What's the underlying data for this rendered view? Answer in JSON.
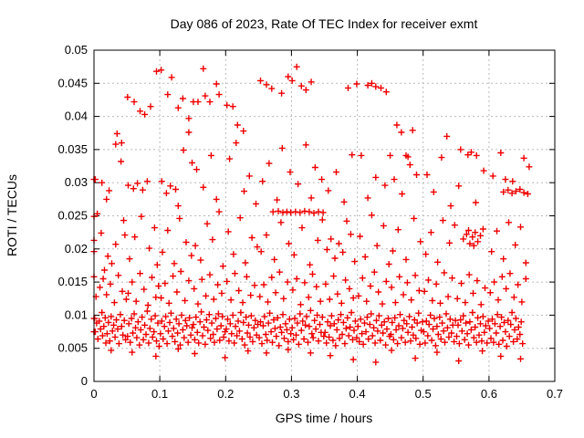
{
  "chart_data": {
    "type": "scatter",
    "title": "Day 086 of 2023, Rate Of TEC Index for receiver exmt",
    "xlabel": "GPS time / hours",
    "ylabel": "ROTI / TECUs",
    "xlim": [
      0,
      0.7
    ],
    "ylim": [
      0,
      0.05
    ],
    "x_ticks": [
      0,
      0.1,
      0.2,
      0.3,
      0.4,
      0.5,
      0.6,
      0.7
    ],
    "x_tick_labels": [
      "0",
      "0.1",
      "0.2",
      "0.3",
      "0.4",
      "0.5",
      "0.6",
      "0.7"
    ],
    "y_ticks": [
      0,
      0.005,
      0.01,
      0.015,
      0.02,
      0.025,
      0.03,
      0.035,
      0.04,
      0.045,
      0.05
    ],
    "y_tick_labels": [
      "0",
      "0.005",
      "0.01",
      "0.015",
      "0.02",
      "0.025",
      "0.03",
      "0.035",
      "0.04",
      "0.045",
      "0.05"
    ],
    "grid": true,
    "legend_position": "none",
    "marker": {
      "shape": "plus",
      "color": "#ee0000",
      "size": 7
    },
    "grid_color": "#b9b9b9",
    "border_color": "#000000",
    "background_color": "#ffffff",
    "points": [
      0.001,
      0.0095,
      0.002,
      0.0075,
      0.004,
      0.0088,
      0.006,
      0.0064,
      0.008,
      0.0091,
      0.01,
      0.0079,
      0.012,
      0.0104,
      0.013,
      0.0069,
      0.015,
      0.0083,
      0.017,
      0.0096,
      0.018,
      0.0058,
      0.02,
      0.0072,
      0.022,
      0.0089,
      0.024,
      0.0061,
      0.026,
      0.0098,
      0.028,
      0.0076,
      0.03,
      0.0085,
      0.032,
      0.0067,
      0.034,
      0.0093,
      0.036,
      0.0079,
      0.038,
      0.0057,
      0.04,
      0.0101,
      0.042,
      0.0083,
      0.044,
      0.007,
      0.046,
      0.0092,
      0.048,
      0.0063,
      0.003,
      0.0128,
      0.009,
      0.0142,
      0.014,
      0.0155,
      0.019,
      0.0131,
      0.025,
      0.0147,
      0.031,
      0.0119,
      0.037,
      0.016,
      0.043,
      0.0136,
      0.049,
      0.0124,
      0.016,
      0.0168,
      0.005,
      0.0253,
      0.011,
      0.0224,
      0.021,
      0.0189,
      0.033,
      0.0207,
      0.045,
      0.0243,
      0.027,
      0.0178,
      0.047,
      0.0221,
      0.002,
      0.0305,
      0.012,
      0.03,
      0.019,
      0.0275,
      0.023,
      0.0288,
      0.033,
      0.0358,
      0.035,
      0.0374,
      0.041,
      0.0332,
      0.042,
      0.036,
      0.0,
      0.0305,
      0.0,
      0.0249,
      0.0,
      0.0213,
      0.0,
      0.0196,
      0.0,
      0.0158,
      0.0,
      0.0095,
      0.0,
      0.0075,
      0.051,
      0.0068,
      0.053,
      0.0087,
      0.055,
      0.0059,
      0.057,
      0.0095,
      0.059,
      0.0073,
      0.061,
      0.0102,
      0.063,
      0.0081,
      0.065,
      0.0066,
      0.067,
      0.009,
      0.069,
      0.0055,
      0.071,
      0.0078,
      0.073,
      0.0097,
      0.075,
      0.0063,
      0.077,
      0.0085,
      0.079,
      0.0071,
      0.081,
      0.0106,
      0.083,
      0.0058,
      0.085,
      0.008,
      0.087,
      0.0094,
      0.089,
      0.0067,
      0.091,
      0.0075,
      0.093,
      0.0099,
      0.095,
      0.0061,
      0.097,
      0.0088,
      0.099,
      0.0053,
      0.052,
      0.0133,
      0.058,
      0.015,
      0.064,
      0.0121,
      0.07,
      0.0163,
      0.076,
      0.0139,
      0.082,
      0.0115,
      0.088,
      0.0157,
      0.094,
      0.0127,
      0.098,
      0.0144,
      0.054,
      0.0185,
      0.062,
      0.0218,
      0.072,
      0.0249,
      0.084,
      0.0201,
      0.092,
      0.0232,
      0.096,
      0.0176,
      0.052,
      0.0296,
      0.06,
      0.0291,
      0.066,
      0.0299,
      0.074,
      0.0289,
      0.081,
      0.0302,
      0.051,
      0.0429,
      0.061,
      0.0422,
      0.07,
      0.0408,
      0.077,
      0.0403,
      0.086,
      0.0415,
      0.095,
      0.0468,
      0.101,
      0.0072,
      0.103,
      0.0091,
      0.105,
      0.0064,
      0.107,
      0.0083,
      0.109,
      0.0098,
      0.111,
      0.0057,
      0.113,
      0.0076,
      0.115,
      0.0089,
      0.117,
      0.0103,
      0.119,
      0.0068,
      0.121,
      0.008,
      0.123,
      0.006,
      0.125,
      0.0094,
      0.127,
      0.0073,
      0.129,
      0.0087,
      0.131,
      0.0055,
      0.133,
      0.01,
      0.135,
      0.0078,
      0.137,
      0.0066,
      0.139,
      0.0092,
      0.141,
      0.0084,
      0.143,
      0.0059,
      0.145,
      0.0096,
      0.147,
      0.007,
      0.149,
      0.0081,
      0.102,
      0.0126,
      0.108,
      0.0148,
      0.114,
      0.0118,
      0.12,
      0.0159,
      0.126,
      0.0135,
      0.132,
      0.0166,
      0.138,
      0.0122,
      0.144,
      0.0152,
      0.104,
      0.0195,
      0.112,
      0.0228,
      0.122,
      0.0178,
      0.13,
      0.0246,
      0.14,
      0.021,
      0.148,
      0.019,
      0.103,
      0.0302,
      0.11,
      0.0284,
      0.116,
      0.0295,
      0.124,
      0.029,
      0.128,
      0.0265,
      0.136,
      0.0349,
      0.144,
      0.0376,
      0.149,
      0.033,
      0.102,
      0.047,
      0.112,
      0.0433,
      0.118,
      0.0459,
      0.128,
      0.0413,
      0.135,
      0.0427,
      0.144,
      0.0397,
      0.151,
      0.0086,
      0.153,
      0.0063,
      0.155,
      0.0097,
      0.157,
      0.0074,
      0.159,
      0.0058,
      0.161,
      0.009,
      0.163,
      0.0105,
      0.165,
      0.0069,
      0.167,
      0.0082,
      0.169,
      0.0056,
      0.171,
      0.0093,
      0.173,
      0.0077,
      0.175,
      0.0101,
      0.177,
      0.0065,
      0.179,
      0.0088,
      0.181,
      0.0071,
      0.183,
      0.0059,
      0.185,
      0.0095,
      0.187,
      0.0079,
      0.189,
      0.0102,
      0.191,
      0.0062,
      0.193,
      0.0084,
      0.195,
      0.0098,
      0.197,
      0.0067,
      0.199,
      0.0075,
      0.152,
      0.014,
      0.158,
      0.0117,
      0.164,
      0.0154,
      0.17,
      0.0129,
      0.176,
      0.0161,
      0.182,
      0.0124,
      0.188,
      0.0146,
      0.194,
      0.0133,
      0.154,
      0.0205,
      0.162,
      0.0183,
      0.172,
      0.0238,
      0.18,
      0.0214,
      0.19,
      0.0256,
      0.196,
      0.0174,
      0.156,
      0.032,
      0.166,
      0.0293,
      0.178,
      0.0341,
      0.186,
      0.0275,
      0.151,
      0.0422,
      0.158,
      0.0422,
      0.166,
      0.0472,
      0.169,
      0.0431,
      0.176,
      0.0422,
      0.186,
      0.0449,
      0.19,
      0.0433,
      0.201,
      0.0079,
      0.203,
      0.0094,
      0.205,
      0.0061,
      0.207,
      0.0087,
      0.209,
      0.0072,
      0.211,
      0.01,
      0.213,
      0.0058,
      0.215,
      0.0083,
      0.217,
      0.0069,
      0.219,
      0.0091,
      0.221,
      0.0076,
      0.223,
      0.0104,
      0.225,
      0.0064,
      0.227,
      0.0089,
      0.229,
      0.0055,
      0.231,
      0.0097,
      0.233,
      0.0073,
      0.235,
      0.0085,
      0.237,
      0.0067,
      0.239,
      0.0099,
      0.241,
      0.006,
      0.243,
      0.0081,
      0.245,
      0.0092,
      0.247,
      0.007,
      0.249,
      0.0086,
      0.202,
      0.0151,
      0.208,
      0.0123,
      0.214,
      0.0163,
      0.22,
      0.0137,
      0.226,
      0.0119,
      0.232,
      0.0158,
      0.238,
      0.013,
      0.244,
      0.0145,
      0.204,
      0.0226,
      0.212,
      0.0192,
      0.222,
      0.0247,
      0.23,
      0.0179,
      0.24,
      0.0217,
      0.248,
      0.0203,
      0.206,
      0.0336,
      0.216,
      0.036,
      0.228,
      0.0287,
      0.236,
      0.031,
      0.246,
      0.0268,
      0.202,
      0.0417,
      0.211,
      0.0415,
      0.218,
      0.0387,
      0.227,
      0.0378,
      0.251,
      0.0066,
      0.253,
      0.009,
      0.255,
      0.0057,
      0.257,
      0.0084,
      0.259,
      0.0098,
      0.261,
      0.0071,
      0.263,
      0.0062,
      0.265,
      0.0088,
      0.267,
      0.0103,
      0.269,
      0.0075,
      0.271,
      0.0059,
      0.273,
      0.0093,
      0.275,
      0.008,
      0.277,
      0.0068,
      0.279,
      0.0096,
      0.281,
      0.0054,
      0.283,
      0.0082,
      0.285,
      0.0074,
      0.287,
      0.0101,
      0.289,
      0.0065,
      0.291,
      0.0087,
      0.293,
      0.0078,
      0.295,
      0.006,
      0.297,
      0.0094,
      0.299,
      0.0072,
      0.252,
      0.0128,
      0.258,
      0.0146,
      0.264,
      0.012,
      0.27,
      0.0157,
      0.276,
      0.0134,
      0.282,
      0.0165,
      0.288,
      0.0125,
      0.294,
      0.015,
      0.272,
      0.0256,
      0.28,
      0.0257,
      0.287,
      0.0255,
      0.293,
      0.0256,
      0.299,
      0.0255,
      0.254,
      0.0196,
      0.262,
      0.0221,
      0.274,
      0.0184,
      0.284,
      0.024,
      0.296,
      0.0208,
      0.256,
      0.0302,
      0.266,
      0.0329,
      0.278,
      0.0274,
      0.286,
      0.0352,
      0.298,
      0.0316,
      0.253,
      0.0454,
      0.262,
      0.0448,
      0.27,
      0.0442,
      0.285,
      0.0435,
      0.295,
      0.046,
      0.301,
      0.0081,
      0.303,
      0.0063,
      0.305,
      0.0095,
      0.307,
      0.007,
      0.309,
      0.0088,
      0.311,
      0.0056,
      0.313,
      0.0102,
      0.315,
      0.0077,
      0.317,
      0.0091,
      0.319,
      0.0064,
      0.321,
      0.0085,
      0.323,
      0.0098,
      0.325,
      0.0059,
      0.327,
      0.0083,
      0.329,
      0.0107,
      0.331,
      0.0072,
      0.333,
      0.0066,
      0.335,
      0.0092,
      0.337,
      0.0079,
      0.339,
      0.01,
      0.341,
      0.0061,
      0.343,
      0.0086,
      0.345,
      0.0074,
      0.347,
      0.0097,
      0.349,
      0.0068,
      0.302,
      0.0138,
      0.308,
      0.0155,
      0.314,
      0.0116,
      0.32,
      0.0149,
      0.326,
      0.0127,
      0.332,
      0.0162,
      0.338,
      0.0143,
      0.344,
      0.0121,
      0.306,
      0.0256,
      0.313,
      0.0255,
      0.32,
      0.0257,
      0.327,
      0.0256,
      0.334,
      0.0254,
      0.341,
      0.0256,
      0.348,
      0.0255,
      0.304,
      0.0191,
      0.316,
      0.0232,
      0.328,
      0.0176,
      0.34,
      0.0213,
      0.347,
      0.0244,
      0.31,
      0.0298,
      0.322,
      0.0357,
      0.33,
      0.0277,
      0.336,
      0.0323,
      0.346,
      0.0305,
      0.301,
      0.0454,
      0.308,
      0.0475,
      0.315,
      0.0446,
      0.322,
      0.044,
      0.33,
      0.0452,
      0.351,
      0.0074,
      0.353,
      0.0058,
      0.355,
      0.009,
      0.357,
      0.0067,
      0.359,
      0.0084,
      0.361,
      0.0099,
      0.363,
      0.0062,
      0.365,
      0.0087,
      0.367,
      0.0054,
      0.369,
      0.0078,
      0.371,
      0.0093,
      0.373,
      0.0065,
      0.375,
      0.0101,
      0.377,
      0.0071,
      0.379,
      0.0089,
      0.381,
      0.0057,
      0.383,
      0.008,
      0.385,
      0.0096,
      0.387,
      0.0069,
      0.389,
      0.0082,
      0.391,
      0.0104,
      0.393,
      0.0063,
      0.395,
      0.0077,
      0.397,
      0.0091,
      0.399,
      0.0066,
      0.352,
      0.0147,
      0.358,
      0.0124,
      0.364,
      0.0159,
      0.37,
      0.0132,
      0.376,
      0.0118,
      0.382,
      0.0153,
      0.388,
      0.014,
      0.394,
      0.0126,
      0.354,
      0.0199,
      0.36,
      0.0215,
      0.366,
      0.0186,
      0.372,
      0.0208,
      0.378,
      0.0195,
      0.384,
      0.0242,
      0.39,
      0.0222,
      0.396,
      0.0181,
      0.356,
      0.0288,
      0.368,
      0.0316,
      0.38,
      0.0271,
      0.392,
      0.0342,
      0.386,
      0.0443,
      0.399,
      0.0449,
      0.401,
      0.0083,
      0.403,
      0.006,
      0.405,
      0.0094,
      0.407,
      0.0072,
      0.409,
      0.0056,
      0.411,
      0.0088,
      0.413,
      0.0075,
      0.415,
      0.0097,
      0.417,
      0.0064,
      0.419,
      0.0086,
      0.421,
      0.0102,
      0.423,
      0.0069,
      0.425,
      0.0081,
      0.427,
      0.0058,
      0.429,
      0.0092,
      0.431,
      0.0076,
      0.433,
      0.0099,
      0.435,
      0.0062,
      0.437,
      0.0085,
      0.439,
      0.0073,
      0.441,
      0.009,
      0.443,
      0.0055,
      0.445,
      0.0079,
      0.447,
      0.0095,
      0.449,
      0.0068,
      0.402,
      0.0129,
      0.408,
      0.0156,
      0.414,
      0.0121,
      0.42,
      0.0144,
      0.426,
      0.0165,
      0.432,
      0.0135,
      0.438,
      0.0117,
      0.444,
      0.0151,
      0.404,
      0.0219,
      0.412,
      0.0188,
      0.422,
      0.0251,
      0.43,
      0.0205,
      0.44,
      0.0235,
      0.448,
      0.0177,
      0.406,
      0.0341,
      0.416,
      0.0277,
      0.428,
      0.0308,
      0.442,
      0.0296,
      0.416,
      0.0447,
      0.422,
      0.045,
      0.428,
      0.0445,
      0.436,
      0.0443,
      0.444,
      0.0437,
      0.451,
      0.0071,
      0.453,
      0.0089,
      0.455,
      0.0063,
      0.457,
      0.0096,
      0.459,
      0.0078,
      0.461,
      0.0057,
      0.463,
      0.0084,
      0.465,
      0.0101,
      0.467,
      0.0066,
      0.469,
      0.008,
      0.471,
      0.0092,
      0.473,
      0.0059,
      0.475,
      0.0087,
      0.477,
      0.0074,
      0.479,
      0.0098,
      0.481,
      0.0061,
      0.483,
      0.0082,
      0.485,
      0.007,
      0.487,
      0.0093,
      0.489,
      0.0065,
      0.491,
      0.0088,
      0.493,
      0.0103,
      0.495,
      0.0056,
      0.497,
      0.0077,
      0.499,
      0.009,
      0.452,
      0.0142,
      0.458,
      0.0119,
      0.464,
      0.0158,
      0.47,
      0.0131,
      0.476,
      0.0149,
      0.482,
      0.0123,
      0.488,
      0.016,
      0.494,
      0.0137,
      0.454,
      0.0197,
      0.462,
      0.0229,
      0.474,
      0.0184,
      0.486,
      0.0246,
      0.496,
      0.0211,
      0.456,
      0.0305,
      0.468,
      0.0283,
      0.48,
      0.0327,
      0.49,
      0.0312,
      0.45,
      0.0341,
      0.46,
      0.0387,
      0.467,
      0.0376,
      0.474,
      0.0341,
      0.477,
      0.0339,
      0.484,
      0.0379,
      0.501,
      0.0075,
      0.503,
      0.0058,
      0.505,
      0.0091,
      0.507,
      0.0069,
      0.509,
      0.0086,
      0.511,
      0.01,
      0.513,
      0.0062,
      0.515,
      0.0079,
      0.517,
      0.0095,
      0.519,
      0.0054,
      0.521,
      0.0083,
      0.523,
      0.0071,
      0.525,
      0.0097,
      0.527,
      0.0064,
      0.529,
      0.0088,
      0.531,
      0.0076,
      0.533,
      0.0059,
      0.535,
      0.0102,
      0.537,
      0.0081,
      0.539,
      0.0067,
      0.541,
      0.0094,
      0.543,
      0.0073,
      0.545,
      0.0085,
      0.547,
      0.006,
      0.549,
      0.0092,
      0.502,
      0.0136,
      0.508,
      0.0153,
      0.514,
      0.0122,
      0.52,
      0.0147,
      0.526,
      0.0118,
      0.532,
      0.0164,
      0.538,
      0.0128,
      0.544,
      0.0156,
      0.504,
      0.0192,
      0.512,
      0.0225,
      0.522,
      0.018,
      0.53,
      0.0243,
      0.54,
      0.0209,
      0.548,
      0.0236,
      0.506,
      0.0312,
      0.516,
      0.0286,
      0.528,
      0.0338,
      0.542,
      0.0265,
      0.536,
      0.037,
      0.551,
      0.0068,
      0.553,
      0.0085,
      0.555,
      0.0057,
      0.557,
      0.0093,
      0.559,
      0.0076,
      0.561,
      0.0099,
      0.563,
      0.0063,
      0.565,
      0.0088,
      0.567,
      0.0072,
      0.569,
      0.0055,
      0.571,
      0.009,
      0.573,
      0.0078,
      0.575,
      0.0104,
      0.577,
      0.0066,
      0.579,
      0.0082,
      0.581,
      0.0059,
      0.583,
      0.0096,
      0.585,
      0.007,
      0.587,
      0.0087,
      0.589,
      0.0061,
      0.591,
      0.0098,
      0.593,
      0.0074,
      0.595,
      0.0084,
      0.597,
      0.0058,
      0.599,
      0.0091,
      0.552,
      0.0125,
      0.558,
      0.0148,
      0.564,
      0.0119,
      0.57,
      0.0161,
      0.576,
      0.0133,
      0.582,
      0.0152,
      0.588,
      0.0116,
      0.594,
      0.0141,
      0.561,
      0.0215,
      0.566,
      0.0222,
      0.569,
      0.0228,
      0.571,
      0.0208,
      0.575,
      0.0218,
      0.577,
      0.0205,
      0.579,
      0.0225,
      0.583,
      0.0211,
      0.587,
      0.022,
      0.591,
      0.023,
      0.554,
      0.0295,
      0.557,
      0.035,
      0.568,
      0.0342,
      0.573,
      0.0346,
      0.58,
      0.027,
      0.581,
      0.0341,
      0.592,
      0.0318,
      0.601,
      0.008,
      0.603,
      0.0065,
      0.605,
      0.0094,
      0.607,
      0.0059,
      0.609,
      0.0087,
      0.611,
      0.0073,
      0.613,
      0.0101,
      0.615,
      0.0056,
      0.617,
      0.0083,
      0.619,
      0.0097,
      0.621,
      0.0062,
      0.623,
      0.0089,
      0.625,
      0.0075,
      0.627,
      0.0053,
      0.629,
      0.0092,
      0.631,
      0.0068,
      0.633,
      0.0086,
      0.635,
      0.0104,
      0.637,
      0.006,
      0.639,
      0.0078,
      0.641,
      0.0095,
      0.643,
      0.0064,
      0.645,
      0.0082,
      0.647,
      0.0071,
      0.649,
      0.009,
      0.651,
      0.0057,
      0.602,
      0.0134,
      0.608,
      0.015,
      0.614,
      0.0123,
      0.62,
      0.0158,
      0.626,
      0.014,
      0.632,
      0.0163,
      0.638,
      0.0127,
      0.644,
      0.0146,
      0.65,
      0.012,
      0.656,
      0.0155,
      0.604,
      0.0196,
      0.612,
      0.0227,
      0.622,
      0.0185,
      0.63,
      0.024,
      0.64,
      0.0206,
      0.648,
      0.0233,
      0.656,
      0.0179,
      0.622,
      0.0286,
      0.629,
      0.0289,
      0.635,
      0.0284,
      0.641,
      0.0287,
      0.647,
      0.029,
      0.653,
      0.0285,
      0.659,
      0.0283,
      0.606,
      0.031,
      0.618,
      0.0345,
      0.625,
      0.0305,
      0.636,
      0.0302,
      0.653,
      0.0337,
      0.661,
      0.0324,
      0.026,
      0.0047,
      0.058,
      0.0044,
      0.094,
      0.0038,
      0.128,
      0.0049,
      0.153,
      0.0042,
      0.199,
      0.0036,
      0.234,
      0.0046,
      0.262,
      0.0043,
      0.295,
      0.0048,
      0.329,
      0.0043,
      0.359,
      0.0039,
      0.394,
      0.0033,
      0.428,
      0.0029,
      0.452,
      0.0047,
      0.488,
      0.0035,
      0.521,
      0.0044,
      0.554,
      0.0031,
      0.59,
      0.0046,
      0.618,
      0.0038,
      0.648,
      0.0034
    ]
  }
}
